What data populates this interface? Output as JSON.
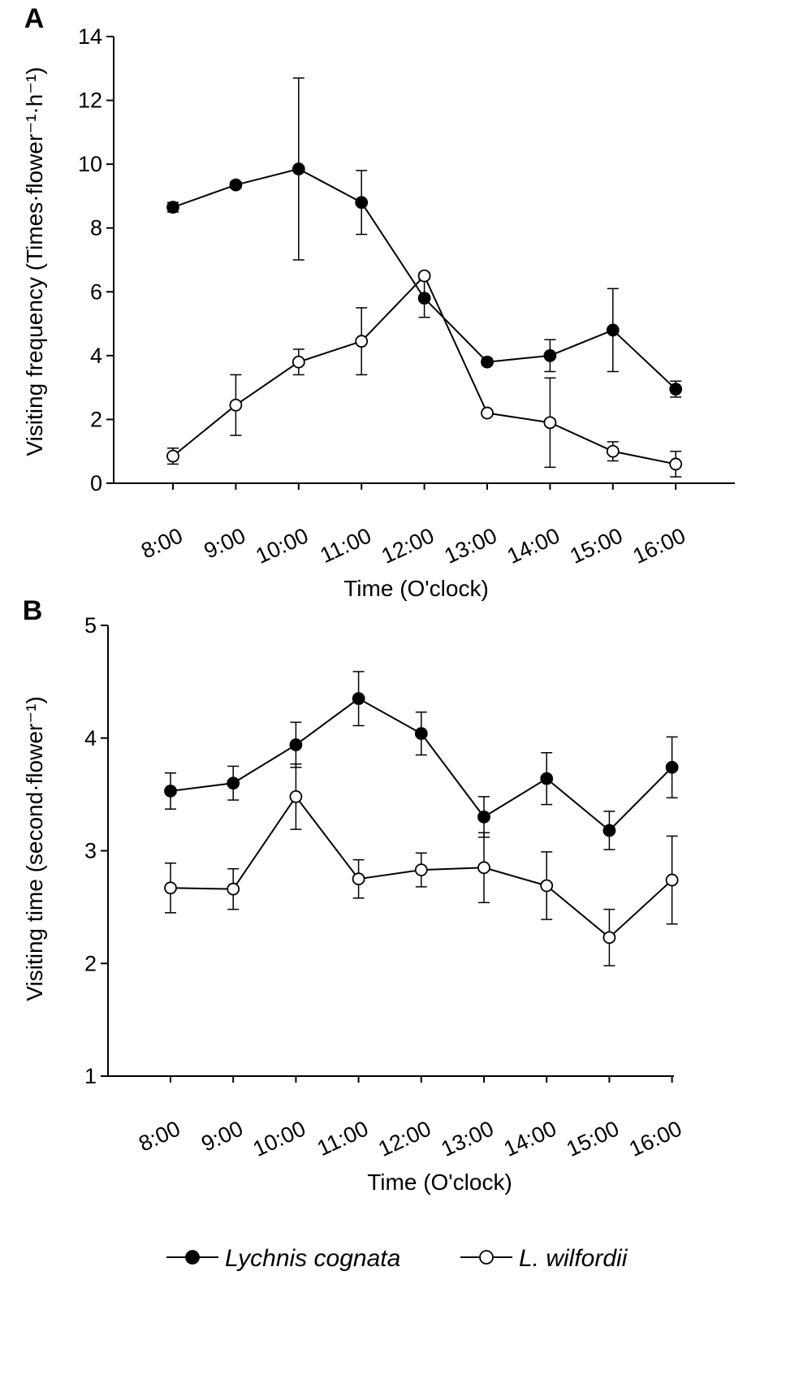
{
  "chart_data": [
    {
      "type": "line",
      "panel_label": "A",
      "categories": [
        "8:00",
        "9:00",
        "10:00",
        "11:00",
        "12:00",
        "13:00",
        "14:00",
        "15:00",
        "16:00"
      ],
      "xlabel": "Time (O'clock)",
      "ylabel": "Visiting frequency (Times·flower⁻¹·h⁻¹)",
      "ylim": [
        0,
        14
      ],
      "yticks": [
        0,
        2,
        4,
        6,
        8,
        10,
        12,
        14
      ],
      "error_bars": true,
      "series": [
        {
          "name": "Lychnis cognata",
          "marker": "filled-circle",
          "values": [
            8.65,
            9.35,
            9.85,
            8.8,
            5.8,
            3.8,
            4.0,
            4.8,
            2.95
          ],
          "errors": [
            0.15,
            0.1,
            2.85,
            1.0,
            0.6,
            0.1,
            0.5,
            1.3,
            0.25
          ]
        },
        {
          "name": "L. wilfordii",
          "marker": "open-circle",
          "values": [
            0.85,
            2.45,
            3.8,
            4.45,
            6.5,
            2.2,
            1.9,
            1.0,
            0.6
          ],
          "errors": [
            0.25,
            0.95,
            0.4,
            1.05,
            0.1,
            0.05,
            1.4,
            0.3,
            0.4
          ]
        }
      ]
    },
    {
      "type": "line",
      "panel_label": "B",
      "categories": [
        "8:00",
        "9:00",
        "10:00",
        "11:00",
        "12:00",
        "13:00",
        "14:00",
        "15:00",
        "16:00"
      ],
      "xlabel": "Time (O'clock)",
      "ylabel": "Visiting time (second·flower⁻¹)",
      "ylim": [
        1,
        5
      ],
      "yticks": [
        1,
        2,
        3,
        4,
        5
      ],
      "error_bars": true,
      "series": [
        {
          "name": "Lychnis cognata",
          "marker": "filled-circle",
          "values": [
            3.53,
            3.6,
            3.94,
            4.35,
            4.04,
            3.3,
            3.64,
            3.18,
            3.74
          ],
          "errors": [
            0.16,
            0.15,
            0.2,
            0.24,
            0.19,
            0.18,
            0.23,
            0.17,
            0.27
          ]
        },
        {
          "name": "L. wilfordii",
          "marker": "open-circle",
          "values": [
            2.67,
            2.66,
            3.48,
            2.75,
            2.83,
            2.85,
            2.69,
            2.23,
            2.74
          ],
          "errors": [
            0.22,
            0.18,
            0.29,
            0.17,
            0.15,
            0.31,
            0.3,
            0.25,
            0.39
          ]
        }
      ]
    }
  ],
  "legend": {
    "placement": "bottom-center",
    "entries": [
      {
        "label": "Lychnis cognata",
        "marker": "filled-circle"
      },
      {
        "label": "L. wilfordii",
        "marker": "open-circle"
      }
    ]
  },
  "colors": {
    "line": "#000000",
    "filled_marker": "#000000",
    "open_marker_fill": "#ffffff"
  }
}
